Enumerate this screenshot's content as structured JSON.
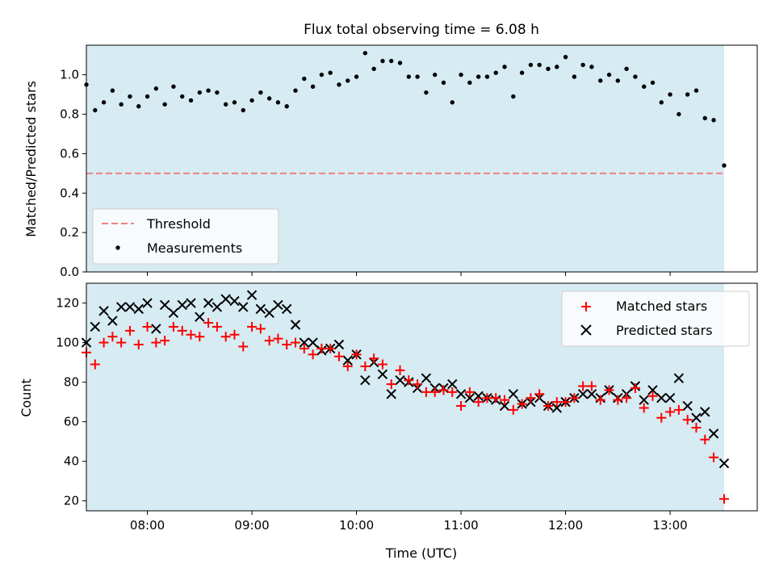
{
  "figure": {
    "title": "Flux total observing time = 6.08 h",
    "xlabel": "Time (UTC)",
    "x_ticks": [
      "08:00",
      "09:00",
      "10:00",
      "11:00",
      "12:00",
      "13:00"
    ]
  },
  "colors": {
    "span": "#add8e6",
    "threshold": "#f08080",
    "measurements": "#000000",
    "matched": "#ff0000",
    "predicted": "#000000"
  },
  "chart_data": [
    {
      "type": "scatter",
      "ylabel": "Matched/Predicted stars",
      "x_range": [
        "07:25",
        "13:50"
      ],
      "ylim": [
        0,
        1.15
      ],
      "y_ticks": [
        "0.0",
        "0.2",
        "0.4",
        "0.6",
        "0.8",
        "1.0"
      ],
      "shaded_span": [
        "07:25",
        "13:31"
      ],
      "threshold": {
        "name": "Threshold",
        "value": 0.5
      },
      "legend": {
        "position": "lower-left",
        "entries": [
          "Threshold",
          "Measurements"
        ]
      },
      "series": [
        {
          "name": "Measurements",
          "marker": "dot",
          "x": [
            "07:25",
            "07:30",
            "07:35",
            "07:40",
            "07:45",
            "07:50",
            "07:55",
            "08:00",
            "08:05",
            "08:10",
            "08:15",
            "08:20",
            "08:25",
            "08:30",
            "08:35",
            "08:40",
            "08:45",
            "08:50",
            "08:55",
            "09:00",
            "09:05",
            "09:10",
            "09:15",
            "09:20",
            "09:25",
            "09:30",
            "09:35",
            "09:40",
            "09:45",
            "09:50",
            "09:55",
            "10:00",
            "10:05",
            "10:10",
            "10:15",
            "10:20",
            "10:25",
            "10:30",
            "10:35",
            "10:40",
            "10:45",
            "10:50",
            "10:55",
            "11:00",
            "11:05",
            "11:10",
            "11:15",
            "11:20",
            "11:25",
            "11:30",
            "11:35",
            "11:40",
            "11:45",
            "11:50",
            "11:55",
            "12:00",
            "12:05",
            "12:10",
            "12:15",
            "12:20",
            "12:25",
            "12:30",
            "12:35",
            "12:40",
            "12:45",
            "12:50",
            "12:55",
            "13:00",
            "13:05",
            "13:10",
            "13:15",
            "13:20",
            "13:25",
            "13:31"
          ],
          "y": [
            0.95,
            0.82,
            0.86,
            0.92,
            0.85,
            0.89,
            0.84,
            0.89,
            0.93,
            0.85,
            0.94,
            0.89,
            0.87,
            0.91,
            0.92,
            0.91,
            0.85,
            0.86,
            0.82,
            0.87,
            0.91,
            0.88,
            0.86,
            0.84,
            0.92,
            0.98,
            0.94,
            1.0,
            1.01,
            0.95,
            0.97,
            0.99,
            1.11,
            1.03,
            1.07,
            1.07,
            1.06,
            0.99,
            0.99,
            0.91,
            1.0,
            0.96,
            0.86,
            1.0,
            0.96,
            0.99,
            0.99,
            1.01,
            1.04,
            0.89,
            1.01,
            1.05,
            1.05,
            1.03,
            1.04,
            1.09,
            0.99,
            1.05,
            1.04,
            0.97,
            1.0,
            0.97,
            1.03,
            0.99,
            0.94,
            0.96,
            0.86,
            0.9,
            0.8,
            0.9,
            0.92,
            0.78,
            0.77,
            0.54
          ]
        }
      ]
    },
    {
      "type": "scatter",
      "ylabel": "Count",
      "x_range": [
        "07:25",
        "13:50"
      ],
      "ylim": [
        15,
        130
      ],
      "y_ticks": [
        "20",
        "40",
        "60",
        "80",
        "100",
        "120"
      ],
      "shaded_span": [
        "07:25",
        "13:31"
      ],
      "legend": {
        "position": "upper-right",
        "entries": [
          "Matched stars",
          "Predicted stars"
        ]
      },
      "series": [
        {
          "name": "Matched stars",
          "marker": "plus",
          "x": [
            "07:25",
            "07:30",
            "07:35",
            "07:40",
            "07:45",
            "07:50",
            "07:55",
            "08:00",
            "08:05",
            "08:10",
            "08:15",
            "08:20",
            "08:25",
            "08:30",
            "08:35",
            "08:40",
            "08:45",
            "08:50",
            "08:55",
            "09:00",
            "09:05",
            "09:10",
            "09:15",
            "09:20",
            "09:25",
            "09:30",
            "09:35",
            "09:40",
            "09:45",
            "09:50",
            "09:55",
            "10:00",
            "10:05",
            "10:10",
            "10:15",
            "10:20",
            "10:25",
            "10:30",
            "10:35",
            "10:40",
            "10:45",
            "10:50",
            "10:55",
            "11:00",
            "11:05",
            "11:10",
            "11:15",
            "11:20",
            "11:25",
            "11:30",
            "11:35",
            "11:40",
            "11:45",
            "11:50",
            "11:55",
            "12:00",
            "12:05",
            "12:10",
            "12:15",
            "12:20",
            "12:25",
            "12:30",
            "12:35",
            "12:40",
            "12:45",
            "12:50",
            "12:55",
            "13:00",
            "13:05",
            "13:10",
            "13:15",
            "13:20",
            "13:25",
            "13:31"
          ],
          "y": [
            95,
            89,
            100,
            103,
            100,
            106,
            99,
            108,
            100,
            101,
            108,
            106,
            104,
            103,
            110,
            108,
            103,
            104,
            98,
            108,
            107,
            101,
            102,
            99,
            100,
            97,
            94,
            97,
            97,
            93,
            88,
            94,
            88,
            92,
            89,
            79,
            86,
            81,
            79,
            75,
            75,
            76,
            75,
            68,
            75,
            70,
            72,
            72,
            71,
            66,
            69,
            72,
            74,
            68,
            70,
            70,
            72,
            78,
            78,
            71,
            76,
            71,
            72,
            77,
            67,
            73,
            62,
            65,
            66,
            61,
            57,
            51,
            42,
            21
          ]
        },
        {
          "name": "Predicted stars",
          "marker": "x",
          "x": [
            "07:25",
            "07:30",
            "07:35",
            "07:40",
            "07:45",
            "07:50",
            "07:55",
            "08:00",
            "08:05",
            "08:10",
            "08:15",
            "08:20",
            "08:25",
            "08:30",
            "08:35",
            "08:40",
            "08:45",
            "08:50",
            "08:55",
            "09:00",
            "09:05",
            "09:10",
            "09:15",
            "09:20",
            "09:25",
            "09:30",
            "09:35",
            "09:40",
            "09:45",
            "09:50",
            "09:55",
            "10:00",
            "10:05",
            "10:10",
            "10:15",
            "10:20",
            "10:25",
            "10:30",
            "10:35",
            "10:40",
            "10:45",
            "10:50",
            "10:55",
            "11:00",
            "11:05",
            "11:10",
            "11:15",
            "11:20",
            "11:25",
            "11:30",
            "11:35",
            "11:40",
            "11:45",
            "11:50",
            "11:55",
            "12:00",
            "12:05",
            "12:10",
            "12:15",
            "12:20",
            "12:25",
            "12:30",
            "12:35",
            "12:40",
            "12:45",
            "12:50",
            "12:55",
            "13:00",
            "13:05",
            "13:10",
            "13:15",
            "13:20",
            "13:25",
            "13:31"
          ],
          "y": [
            100,
            108,
            116,
            111,
            118,
            118,
            117,
            120,
            107,
            119,
            115,
            119,
            120,
            113,
            120,
            118,
            122,
            121,
            118,
            124,
            117,
            115,
            119,
            117,
            109,
            100,
            100,
            96,
            97,
            99,
            91,
            94,
            81,
            90,
            84,
            74,
            81,
            80,
            77,
            82,
            77,
            77,
            79,
            74,
            72,
            73,
            72,
            71,
            68,
            74,
            69,
            70,
            72,
            68,
            67,
            70,
            72,
            74,
            74,
            72,
            76,
            72,
            74,
            78,
            71,
            76,
            72,
            72,
            82,
            68,
            62,
            65,
            54,
            39
          ]
        }
      ]
    }
  ]
}
